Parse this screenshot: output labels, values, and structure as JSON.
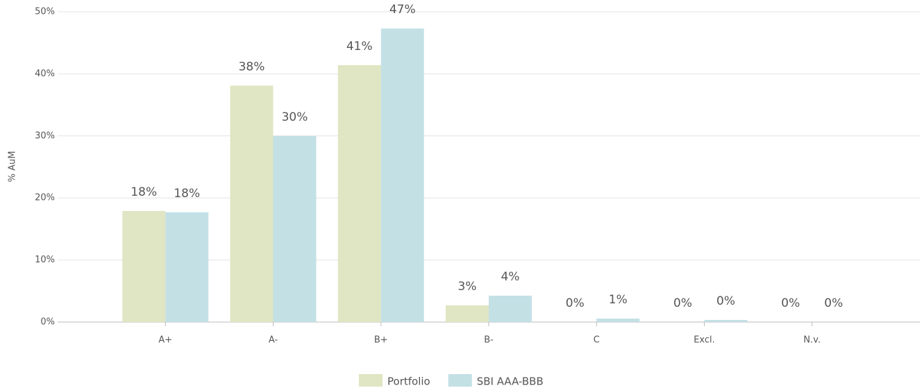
{
  "chart_data": {
    "type": "bar",
    "categories": [
      "A+",
      "A-",
      "B+",
      "B-",
      "C",
      "Excl.",
      "N.v."
    ],
    "series": [
      {
        "name": "Portfolio",
        "color": "#e0e5c3",
        "values": [
          17.9,
          38.1,
          41.4,
          2.7,
          0,
          0,
          0
        ],
        "value_labels": [
          "18%",
          "38%",
          "41%",
          "3%",
          "0%",
          "0%",
          "0%"
        ]
      },
      {
        "name": "SBI AAA-BBB",
        "color": "#c3e0e5",
        "values": [
          17.7,
          30.0,
          47.3,
          4.25,
          0.56,
          0.34,
          0
        ],
        "value_labels": [
          "18%",
          "30%",
          "47%",
          "4%",
          "1%",
          "0%",
          "0%"
        ]
      }
    ],
    "ylabel": "% AuM",
    "ylim": [
      0,
      50
    ],
    "yticks": [
      {
        "value": 0,
        "label": "0%"
      },
      {
        "value": 10,
        "label": "10%"
      },
      {
        "value": 20,
        "label": "20%"
      },
      {
        "value": 30,
        "label": "30%"
      },
      {
        "value": 40,
        "label": "40%"
      },
      {
        "value": 50,
        "label": "50%"
      }
    ],
    "grid": true,
    "legend": "bottom"
  }
}
